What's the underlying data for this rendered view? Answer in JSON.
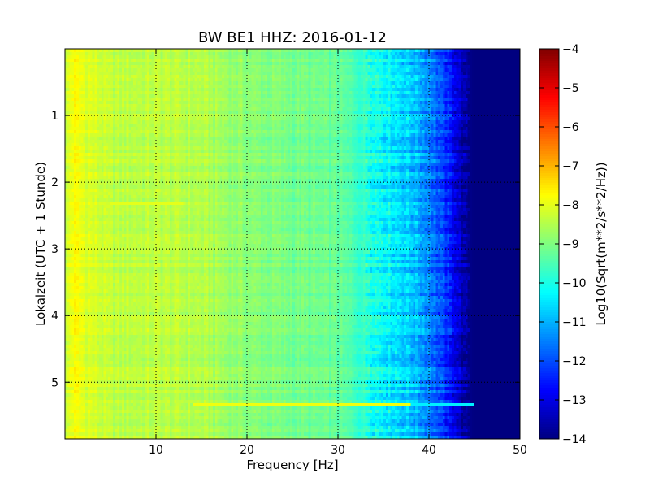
{
  "chart_data": {
    "type": "heatmap",
    "title": "BW BE1 HHZ: 2016-01-12",
    "xlabel": "Frequency [Hz]",
    "ylabel": "Lokalzeit (UTC + 1 Stunde)",
    "xlim": [
      0,
      50
    ],
    "ylim": [
      5.85,
      0
    ],
    "x_ticks": [
      10,
      20,
      30,
      40,
      50
    ],
    "y_ticks": [
      1,
      2,
      3,
      4,
      5
    ],
    "grid": true,
    "colormap": "jet",
    "colorbar": {
      "label": "Log10(Sqrt(m**2/s**2/Hz))",
      "range": [
        -14,
        -4
      ],
      "ticks": [
        -4,
        -5,
        -6,
        -7,
        -8,
        -9,
        -10,
        -11,
        -12,
        -13,
        -14
      ]
    },
    "spectrum_profile": {
      "frequency_hz": [
        0,
        0.5,
        1,
        2,
        5,
        10,
        15,
        20,
        25,
        30,
        32,
        34,
        36,
        38,
        40,
        42,
        43,
        44,
        45,
        50
      ],
      "level": [
        -8.6,
        -8.0,
        -7.8,
        -8.0,
        -8.4,
        -8.4,
        -8.5,
        -8.9,
        -9.1,
        -9.3,
        -9.6,
        -10.0,
        -10.4,
        -10.8,
        -11.4,
        -12.4,
        -13.0,
        -13.8,
        -14.0,
        -14.0
      ]
    },
    "annotations": [
      {
        "description": "horizontal high-energy line",
        "time": 5.32,
        "freq_range": [
          14,
          45
        ],
        "level": -7.9
      },
      {
        "description": "horizontal line",
        "time": 2.33,
        "freq_range": [
          5,
          13
        ],
        "level": -8.0
      }
    ]
  }
}
